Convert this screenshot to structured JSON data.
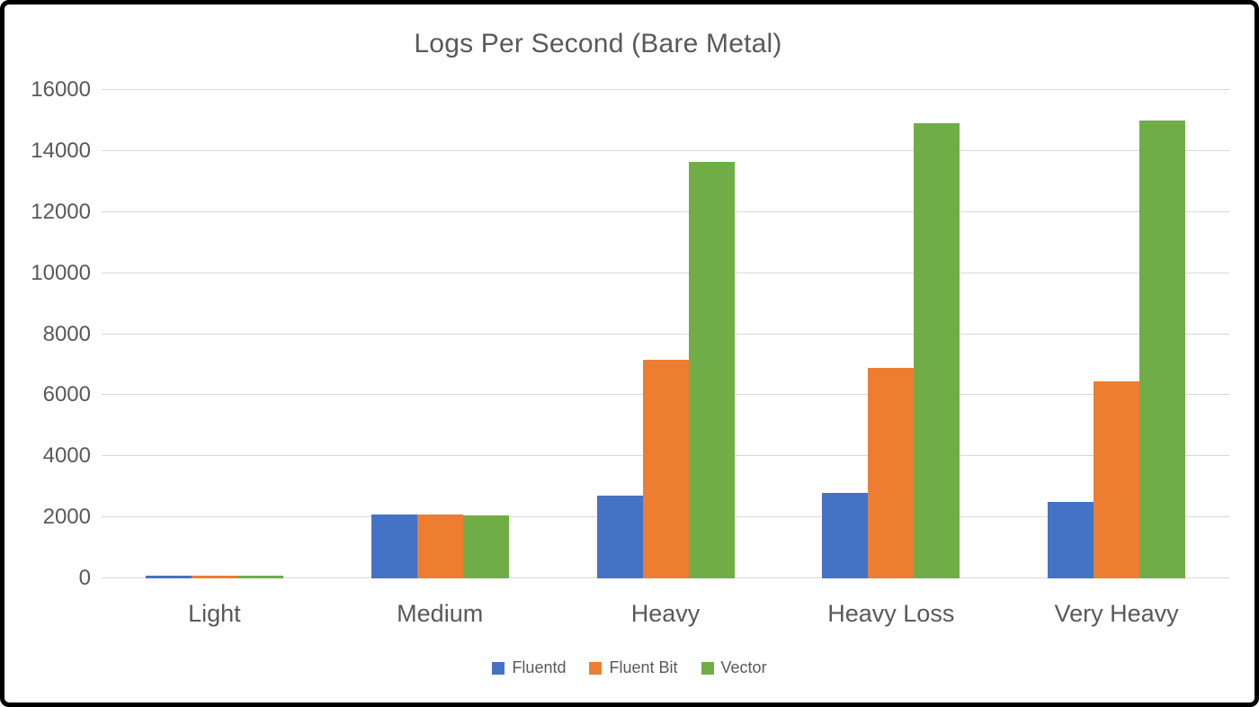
{
  "chart_data": {
    "type": "bar",
    "title": "Logs Per Second (Bare Metal)",
    "categories": [
      "Light",
      "Medium",
      "Heavy",
      "Heavy Loss",
      "Very Heavy"
    ],
    "series": [
      {
        "name": "Fluentd",
        "color": "#4472C4",
        "values": [
          100,
          2100,
          2700,
          2800,
          2500
        ]
      },
      {
        "name": "Fluent Bit",
        "color": "#ED7D31",
        "values": [
          100,
          2100,
          7150,
          6900,
          6450
        ]
      },
      {
        "name": "Vector",
        "color": "#70AD47",
        "values": [
          100,
          2050,
          13650,
          14900,
          15000
        ]
      }
    ],
    "xlabel": "",
    "ylabel": "",
    "ylim": [
      0,
      16000
    ],
    "yticks": [
      0,
      2000,
      4000,
      6000,
      8000,
      10000,
      12000,
      14000,
      16000
    ],
    "grid": true,
    "legend_position": "bottom",
    "colors": {
      "text": "#595959",
      "gridline": "#D9D9D9",
      "background": "#FFFFFF",
      "frame_border": "#000000"
    }
  }
}
